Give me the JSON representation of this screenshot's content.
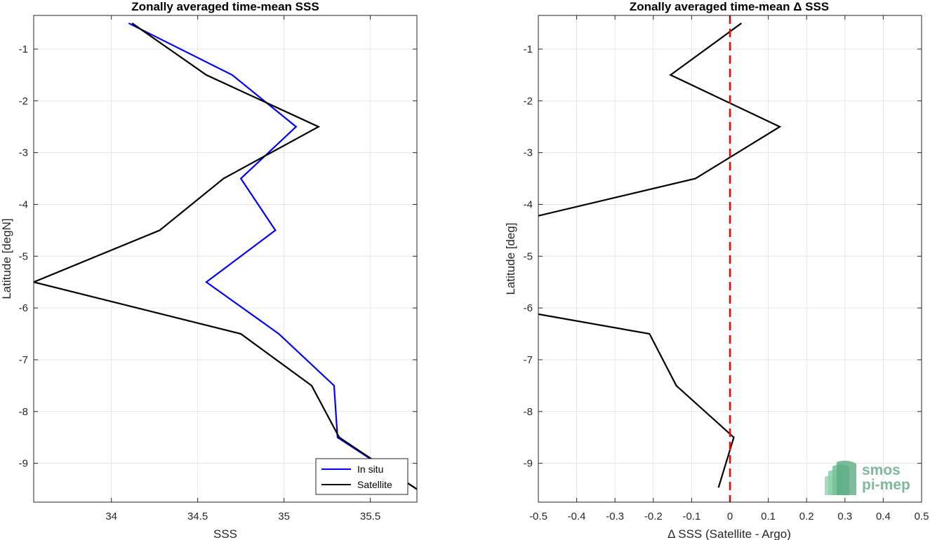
{
  "chart_data": [
    {
      "type": "line",
      "title": "Zonally averaged time-mean SSS",
      "xlabel": "SSS",
      "ylabel": "Latitude [degN]",
      "xlim": [
        33.55,
        35.77
      ],
      "ylim": [
        -9.75,
        -0.35
      ],
      "x_ticks": [
        34,
        34.5,
        35,
        35.5
      ],
      "x_tick_labels": [
        "34",
        "34.5",
        "35",
        "35.5"
      ],
      "y_ticks": [
        -1,
        -2,
        -3,
        -4,
        -5,
        -6,
        -7,
        -8,
        -9
      ],
      "y_tick_labels": [
        "-1",
        "-2",
        "-3",
        "-4",
        "-5",
        "-6",
        "-7",
        "-8",
        "-9"
      ],
      "grid": true,
      "legend_position": "bottom-right",
      "series": [
        {
          "name": "In situ",
          "color": "#0000ff",
          "x": [
            34.1,
            34.7,
            35.07,
            34.75,
            34.95,
            34.55,
            34.97,
            35.29,
            35.31,
            35.77
          ],
          "y": [
            -0.5,
            -1.5,
            -2.5,
            -3.5,
            -4.5,
            -5.5,
            -6.5,
            -7.5,
            -8.5,
            -9.5
          ]
        },
        {
          "name": "Satellite",
          "color": "#000000",
          "x": [
            34.12,
            34.55,
            35.2,
            34.65,
            34.28,
            33.55,
            34.75,
            35.16,
            35.32,
            35.77
          ],
          "y": [
            -0.5,
            -1.5,
            -2.5,
            -3.5,
            -4.5,
            -5.5,
            -6.5,
            -7.5,
            -8.5,
            -9.5
          ]
        }
      ]
    },
    {
      "type": "line",
      "title": "Zonally averaged time-mean Δ SSS",
      "xlabel": "Δ SSS (Satellite - Argo)",
      "ylabel": "Latitude [deg]",
      "xlim": [
        -0.5,
        0.5
      ],
      "ylim": [
        -9.75,
        -0.35
      ],
      "x_ticks": [
        -0.5,
        -0.4,
        -0.3,
        -0.2,
        -0.1,
        0,
        0.1,
        0.2,
        0.3,
        0.4,
        0.5
      ],
      "x_tick_labels": [
        "-0.5",
        "-0.4",
        "-0.3",
        "-0.2",
        "-0.1",
        "0",
        "0.1",
        "0.2",
        "0.3",
        "0.4",
        "0.5"
      ],
      "y_ticks": [
        -1,
        -2,
        -3,
        -4,
        -5,
        -6,
        -7,
        -8,
        -9
      ],
      "y_tick_labels": [
        "-1",
        "-2",
        "-3",
        "-4",
        "-5",
        "-6",
        "-7",
        "-8",
        "-9"
      ],
      "grid": true,
      "reference_line": {
        "x": 0,
        "color": "#ff0000",
        "style": "dashed"
      },
      "series": [
        {
          "color": "#000000",
          "segments": [
            {
              "x": [
                0.03,
                -0.155,
                0.13,
                -0.09,
                -0.5
              ],
              "y": [
                -0.5,
                -1.5,
                -2.5,
                -3.5,
                -4.22
              ]
            },
            {
              "x": [
                -0.5,
                -0.21,
                -0.14,
                0.01,
                -0.03
              ],
              "y": [
                -6.12,
                -6.5,
                -7.5,
                -8.5,
                -9.47
              ]
            }
          ]
        }
      ]
    }
  ],
  "logo": {
    "line1": "smos",
    "line2": "pi-mep"
  }
}
